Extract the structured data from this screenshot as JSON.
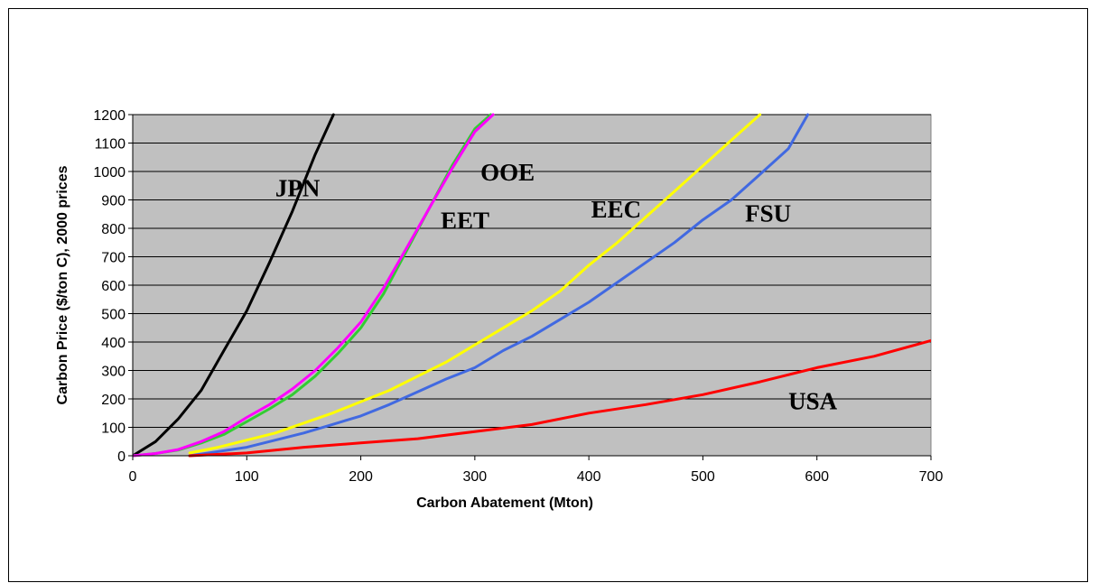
{
  "chart_data": {
    "type": "line",
    "title": "",
    "xlabel": "Carbon Abatement (Mton)",
    "ylabel": "Carbon Price ($/ton C), 2000 prices",
    "xlim": [
      0,
      700
    ],
    "ylim": [
      0,
      1200
    ],
    "xticks": [
      0,
      100,
      200,
      300,
      400,
      500,
      600,
      700
    ],
    "yticks": [
      0,
      100,
      200,
      300,
      400,
      500,
      600,
      700,
      800,
      900,
      1000,
      1100,
      1200
    ],
    "grid": "horizontal",
    "plot_background": "#c0c0c0",
    "legend": "none",
    "series": [
      {
        "name": "JPN",
        "color": "#000000",
        "label_at": [
          125,
          945
        ],
        "x": [
          0,
          20,
          40,
          60,
          80,
          100,
          120,
          140,
          160,
          176
        ],
        "y": [
          0,
          50,
          130,
          230,
          370,
          510,
          680,
          860,
          1060,
          1200
        ]
      },
      {
        "name": "OOE",
        "color": "#33cc33",
        "label_at": [
          305,
          1000
        ],
        "x": [
          0,
          20,
          40,
          60,
          80,
          100,
          120,
          140,
          160,
          180,
          200,
          220,
          240,
          260,
          280,
          300,
          314
        ],
        "y": [
          0,
          8,
          20,
          45,
          75,
          120,
          165,
          215,
          280,
          360,
          450,
          570,
          720,
          870,
          1020,
          1150,
          1200
        ]
      },
      {
        "name": "EET",
        "color": "#ff00ff",
        "label_at": [
          270,
          830
        ],
        "x": [
          0,
          20,
          40,
          60,
          80,
          100,
          120,
          140,
          160,
          180,
          200,
          220,
          240,
          260,
          280,
          300,
          316
        ],
        "y": [
          0,
          8,
          22,
          50,
          85,
          135,
          180,
          235,
          300,
          380,
          470,
          590,
          730,
          870,
          1010,
          1140,
          1200
        ]
      },
      {
        "name": "EEC",
        "color": "#ffff00",
        "label_at": [
          402,
          870
        ],
        "x": [
          50,
          75,
          100,
          125,
          150,
          175,
          200,
          225,
          250,
          275,
          300,
          325,
          350,
          375,
          400,
          425,
          450,
          475,
          500,
          525,
          550
        ],
        "y": [
          10,
          30,
          55,
          80,
          115,
          150,
          190,
          230,
          280,
          330,
          390,
          450,
          510,
          580,
          670,
          750,
          840,
          930,
          1020,
          1110,
          1200
        ]
      },
      {
        "name": "FSU",
        "color": "#4169e1",
        "label_at": [
          537,
          855
        ],
        "x": [
          50,
          75,
          100,
          125,
          150,
          175,
          200,
          225,
          250,
          275,
          300,
          325,
          350,
          375,
          400,
          425,
          450,
          475,
          500,
          525,
          550,
          575,
          592
        ],
        "y": [
          0,
          15,
          30,
          55,
          80,
          110,
          140,
          180,
          225,
          270,
          310,
          370,
          420,
          480,
          540,
          610,
          680,
          750,
          830,
          900,
          990,
          1080,
          1200
        ]
      },
      {
        "name": "USA",
        "color": "#ff0000",
        "label_at": [
          575,
          195
        ],
        "x": [
          50,
          100,
          150,
          200,
          250,
          300,
          350,
          400,
          450,
          500,
          550,
          600,
          650,
          700
        ],
        "y": [
          0,
          10,
          30,
          45,
          60,
          85,
          110,
          150,
          180,
          215,
          260,
          310,
          350,
          405
        ]
      }
    ]
  }
}
